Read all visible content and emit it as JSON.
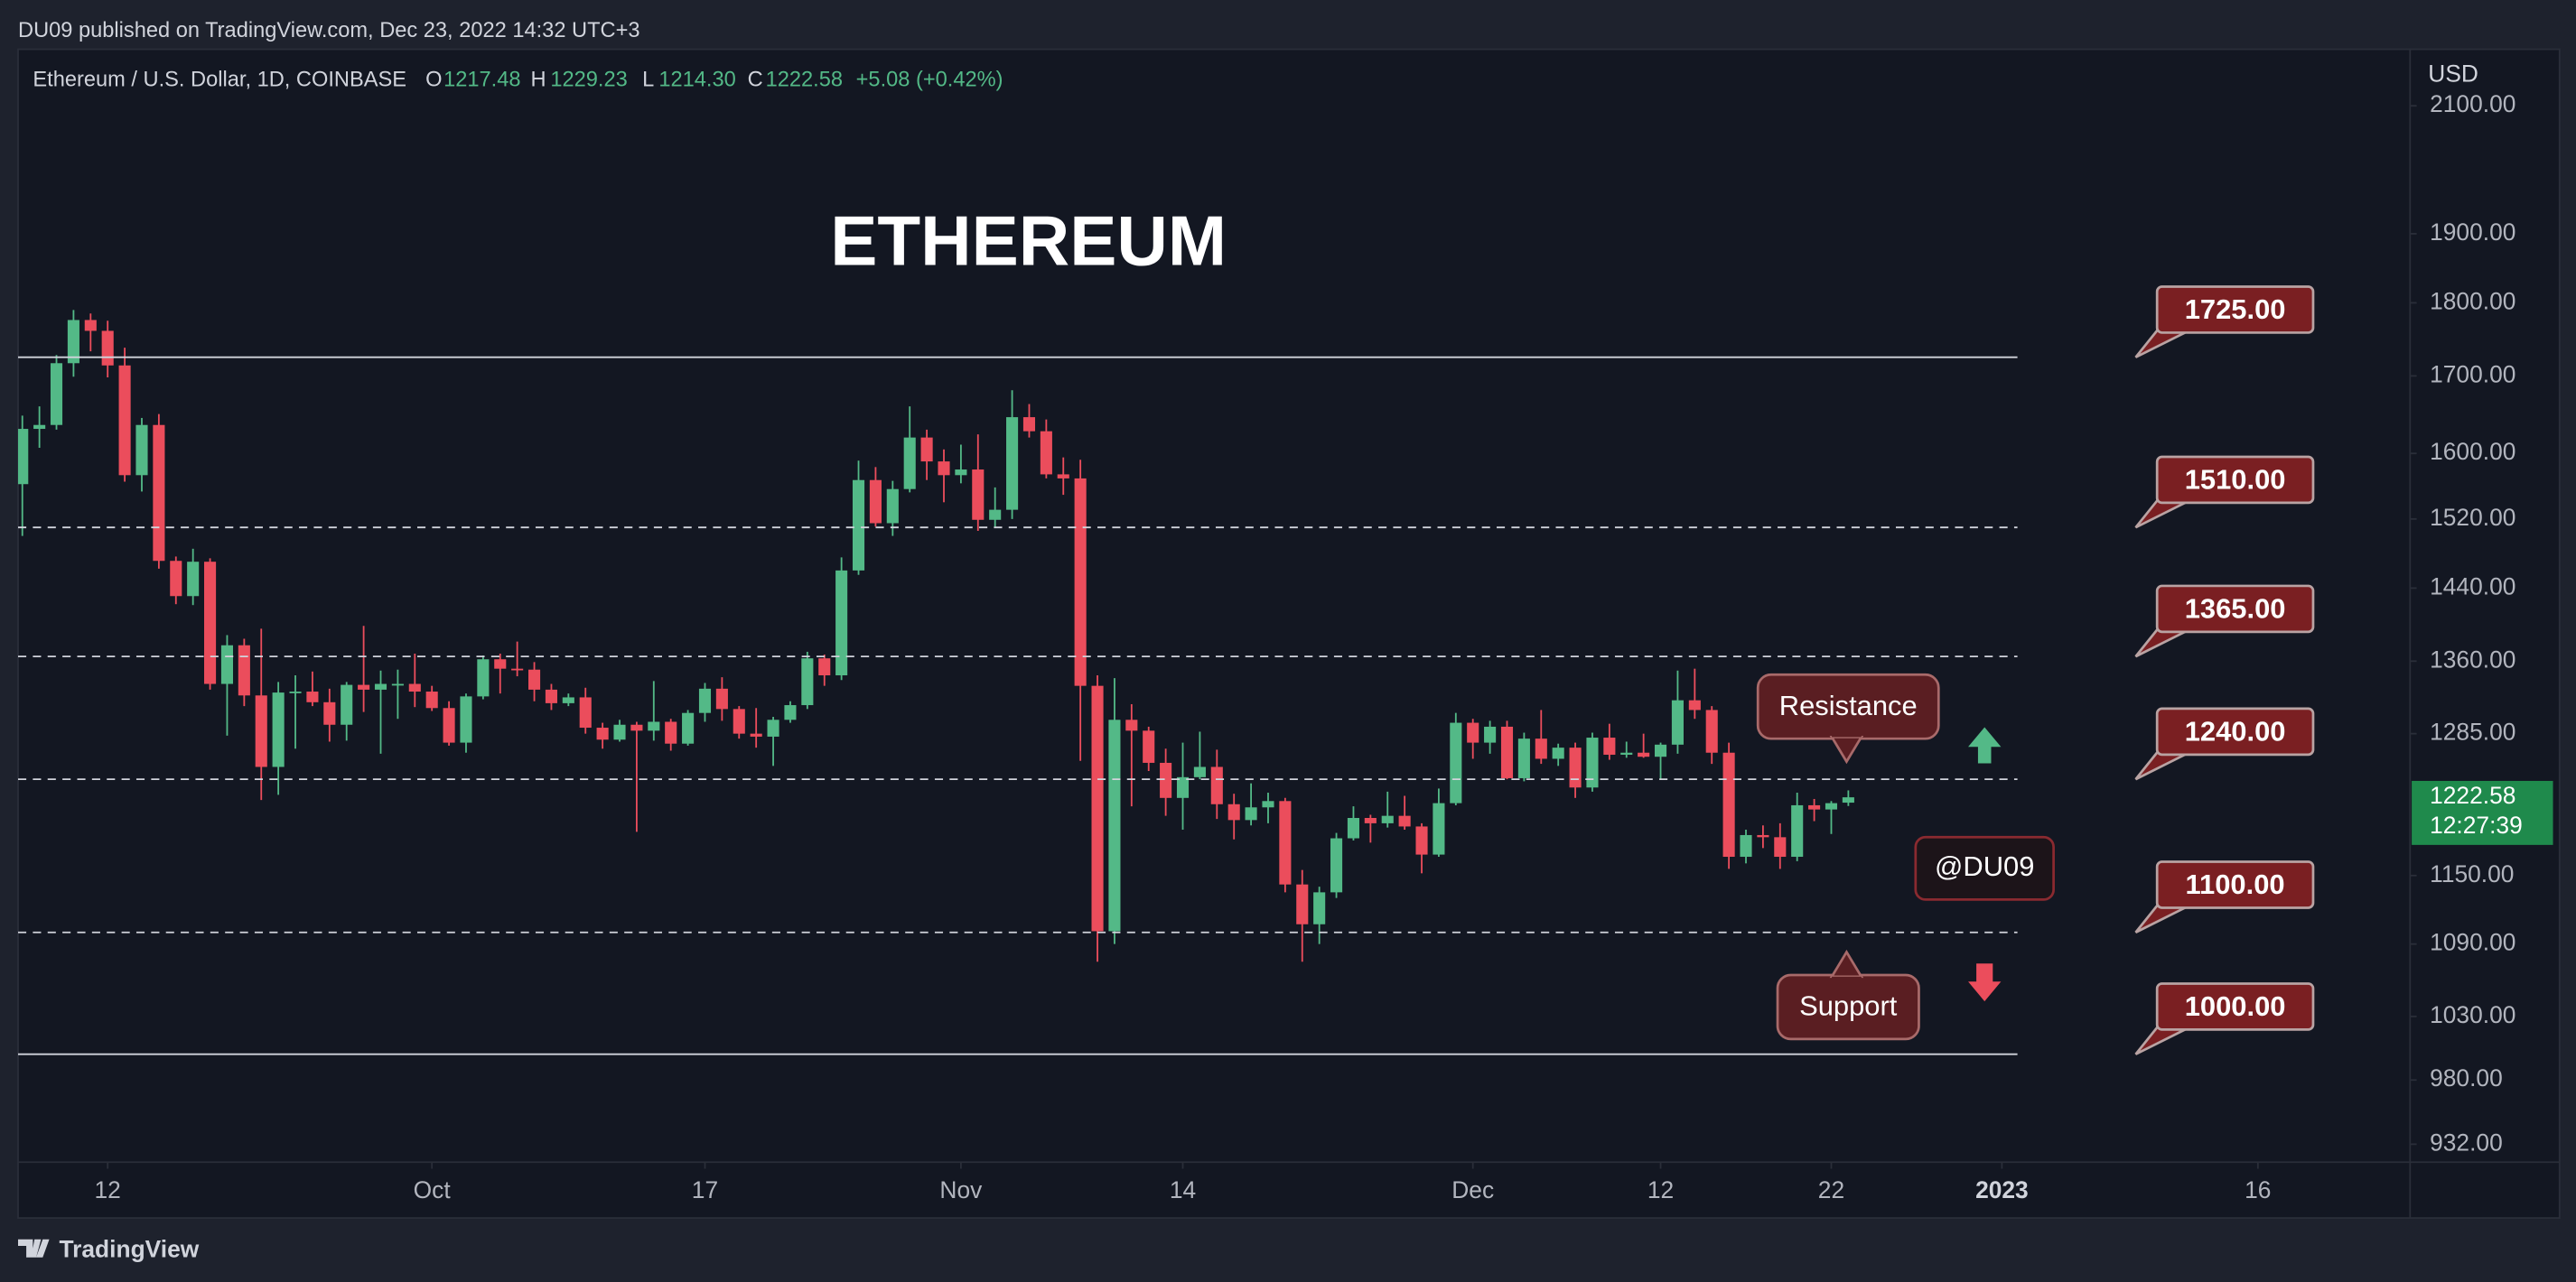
{
  "header": {
    "text": "DU09 published on TradingView.com, Dec 23, 2022 14:32 UTC+3"
  },
  "footer": {
    "brand": "TradingView"
  },
  "chart_data": {
    "type": "candlestick",
    "title": "ETHEREUM",
    "symbol": "Ethereum / U.S. Dollar, 1D, COINBASE",
    "legend": [
      {
        "key": "O",
        "value": "1217.48"
      },
      {
        "key": "H",
        "value": "1229.23"
      },
      {
        "key": "L",
        "value": "1214.30"
      },
      {
        "key": "C",
        "value": "1222.58"
      }
    ],
    "change": "+5.08 (+0.42%)",
    "ylabel": "USD",
    "last_price_label": "1222.58",
    "countdown": "12:27:39",
    "up_color": "#53b987",
    "down_color": "#eb4d5c",
    "log_y": true,
    "grid": false,
    "xlim": [
      "2022-09-06T18:00:00Z",
      "2023-01-24T22:00:00Z"
    ],
    "xticks": [
      {
        "value": "2022-09-12",
        "label": "12"
      },
      {
        "value": "2022-10-01",
        "label": "Oct"
      },
      {
        "value": "2022-10-17",
        "label": "17"
      },
      {
        "value": "2022-11-01",
        "label": "Nov"
      },
      {
        "value": "2022-11-14",
        "label": "14"
      },
      {
        "value": "2022-12-01",
        "label": "Dec"
      },
      {
        "value": "2022-12-12",
        "label": "12"
      },
      {
        "value": "2022-12-22",
        "label": "22"
      },
      {
        "value": "2023-01-01",
        "label": "2023"
      },
      {
        "value": "2023-01-16",
        "label": "16"
      }
    ],
    "ylim": [
      919,
      2195
    ],
    "yticks": [
      {
        "value": 2100,
        "label": "2100.00"
      },
      {
        "value": 1900,
        "label": "1900.00"
      },
      {
        "value": 1800,
        "label": "1800.00"
      },
      {
        "value": 1700,
        "label": "1700.00"
      },
      {
        "value": 1600,
        "label": "1600.00"
      },
      {
        "value": 1520,
        "label": "1520.00"
      },
      {
        "value": 1440,
        "label": "1440.00"
      },
      {
        "value": 1360,
        "label": "1360.00"
      },
      {
        "value": 1285,
        "label": "1285.00"
      },
      {
        "value": 1150,
        "label": "1150.00"
      },
      {
        "value": 1090,
        "label": "1090.00"
      },
      {
        "value": 1030,
        "label": "1030.00"
      },
      {
        "value": 980,
        "label": "980.00"
      },
      {
        "value": 932,
        "label": "932.00"
      }
    ],
    "levels": [
      {
        "value": 1725,
        "label": "1725.00",
        "style": "solid"
      },
      {
        "value": 1510,
        "label": "1510.00",
        "style": "dashed"
      },
      {
        "value": 1365,
        "label": "1365.00",
        "style": "dashed"
      },
      {
        "value": 1240,
        "label": "1240.00",
        "style": "dashed"
      },
      {
        "value": 1100,
        "label": "1100.00",
        "style": "dashed"
      },
      {
        "value": 1000,
        "label": "1000.00",
        "style": "solid"
      }
    ],
    "annotations": [
      "Resistance",
      "Support",
      "@DU09"
    ],
    "x": [
      "2022-09-07",
      "2022-09-08",
      "2022-09-09",
      "2022-09-10",
      "2022-09-11",
      "2022-09-12",
      "2022-09-13",
      "2022-09-14",
      "2022-09-15",
      "2022-09-16",
      "2022-09-17",
      "2022-09-18",
      "2022-09-19",
      "2022-09-20",
      "2022-09-21",
      "2022-09-22",
      "2022-09-23",
      "2022-09-24",
      "2022-09-25",
      "2022-09-26",
      "2022-09-27",
      "2022-09-28",
      "2022-09-29",
      "2022-09-30",
      "2022-10-01",
      "2022-10-02",
      "2022-10-03",
      "2022-10-04",
      "2022-10-05",
      "2022-10-06",
      "2022-10-07",
      "2022-10-08",
      "2022-10-09",
      "2022-10-10",
      "2022-10-11",
      "2022-10-12",
      "2022-10-13",
      "2022-10-14",
      "2022-10-15",
      "2022-10-16",
      "2022-10-17",
      "2022-10-18",
      "2022-10-19",
      "2022-10-20",
      "2022-10-21",
      "2022-10-22",
      "2022-10-23",
      "2022-10-24",
      "2022-10-25",
      "2022-10-26",
      "2022-10-27",
      "2022-10-28",
      "2022-10-29",
      "2022-10-30",
      "2022-10-31",
      "2022-11-01",
      "2022-11-02",
      "2022-11-03",
      "2022-11-04",
      "2022-11-05",
      "2022-11-06",
      "2022-11-07",
      "2022-11-08",
      "2022-11-09",
      "2022-11-10",
      "2022-11-11",
      "2022-11-12",
      "2022-11-13",
      "2022-11-14",
      "2022-11-15",
      "2022-11-16",
      "2022-11-17",
      "2022-11-18",
      "2022-11-19",
      "2022-11-20",
      "2022-11-21",
      "2022-11-22",
      "2022-11-23",
      "2022-11-24",
      "2022-11-25",
      "2022-11-26",
      "2022-11-27",
      "2022-11-28",
      "2022-11-29",
      "2022-11-30",
      "2022-12-01",
      "2022-12-02",
      "2022-12-03",
      "2022-12-04",
      "2022-12-05",
      "2022-12-06",
      "2022-12-07",
      "2022-12-08",
      "2022-12-09",
      "2022-12-10",
      "2022-12-11",
      "2022-12-12",
      "2022-12-13",
      "2022-12-14",
      "2022-12-15",
      "2022-12-16",
      "2022-12-17",
      "2022-12-18",
      "2022-12-19",
      "2022-12-20",
      "2022-12-21",
      "2022-12-22",
      "2022-12-23"
    ],
    "open": [
      1562,
      1631,
      1636,
      1717,
      1776,
      1761,
      1714,
      1573,
      1636,
      1471,
      1431,
      1470,
      1336,
      1377,
      1324,
      1252,
      1327,
      1328,
      1317,
      1294,
      1335,
      1330,
      1336,
      1336,
      1328,
      1311,
      1276,
      1323,
      1362,
      1352,
      1351,
      1330,
      1316,
      1322,
      1291,
      1279,
      1294,
      1288,
      1297,
      1275,
      1306,
      1331,
      1310,
      1285,
      1282,
      1299,
      1314,
      1363,
      1345,
      1460,
      1567,
      1515,
      1556,
      1620,
      1590,
      1573,
      1580,
      1519,
      1531,
      1646,
      1628,
      1574,
      1569,
      1334,
      1101,
      1299,
      1288,
      1256,
      1222,
      1242,
      1252,
      1216,
      1201,
      1213,
      1219,
      1142,
      1107,
      1135,
      1184,
      1203,
      1198,
      1205,
      1195,
      1169,
      1217,
      1296,
      1276,
      1292,
      1241,
      1280,
      1260,
      1271,
      1232,
      1281,
      1264,
      1266,
      1262,
      1274,
      1319,
      1309,
      1266,
      1167,
      1187,
      1185,
      1167,
      1215,
      1211,
      1217.48
    ],
    "high": [
      1648,
      1660,
      1728,
      1790,
      1785,
      1775,
      1738,
      1645,
      1650,
      1476,
      1485,
      1474,
      1388,
      1384,
      1395,
      1338,
      1345,
      1349,
      1331,
      1338,
      1398,
      1350,
      1351,
      1368,
      1334,
      1318,
      1326,
      1366,
      1368,
      1381,
      1359,
      1336,
      1326,
      1332,
      1296,
      1299,
      1297,
      1339,
      1300,
      1309,
      1337,
      1343,
      1313,
      1311,
      1302,
      1318,
      1370,
      1367,
      1475,
      1591,
      1583,
      1566,
      1660,
      1630,
      1605,
      1611,
      1624,
      1558,
      1681,
      1663,
      1643,
      1595,
      1592,
      1345,
      1342,
      1315,
      1292,
      1270,
      1276,
      1287,
      1269,
      1226,
      1236,
      1227,
      1222,
      1155,
      1140,
      1189,
      1214,
      1206,
      1228,
      1224,
      1198,
      1231,
      1306,
      1300,
      1298,
      1298,
      1286,
      1309,
      1275,
      1276,
      1286,
      1295,
      1277,
      1285,
      1276,
      1350,
      1352,
      1313,
      1276,
      1192,
      1196,
      1198,
      1227,
      1221,
      1219,
      1229.23
    ],
    "low": [
      1500,
      1607,
      1630,
      1699,
      1733,
      1698,
      1565,
      1553,
      1462,
      1422,
      1421,
      1330,
      1283,
      1313,
      1220,
      1225,
      1270,
      1313,
      1277,
      1278,
      1307,
      1265,
      1300,
      1312,
      1308,
      1273,
      1266,
      1320,
      1326,
      1344,
      1318,
      1309,
      1313,
      1285,
      1270,
      1277,
      1190,
      1278,
      1268,
      1273,
      1297,
      1298,
      1280,
      1271,
      1253,
      1296,
      1310,
      1334,
      1340,
      1455,
      1511,
      1500,
      1552,
      1567,
      1540,
      1563,
      1506,
      1510,
      1520,
      1620,
      1569,
      1549,
      1258,
      1075,
      1090,
      1214,
      1248,
      1205,
      1192,
      1240,
      1202,
      1183,
      1196,
      1198,
      1135,
      1075,
      1090,
      1130,
      1182,
      1180,
      1194,
      1192,
      1152,
      1167,
      1215,
      1260,
      1265,
      1240,
      1238,
      1255,
      1253,
      1222,
      1228,
      1259,
      1261,
      1261,
      1240,
      1265,
      1300,
      1255,
      1156,
      1161,
      1175,
      1156,
      1163,
      1200,
      1188,
      1214.3
    ],
    "close": [
      1631,
      1636,
      1717,
      1776,
      1761,
      1714,
      1573,
      1636,
      1471,
      1431,
      1470,
      1336,
      1377,
      1324,
      1252,
      1327,
      1328,
      1317,
      1294,
      1335,
      1330,
      1336,
      1336,
      1328,
      1311,
      1276,
      1323,
      1362,
      1352,
      1351,
      1330,
      1316,
      1322,
      1291,
      1279,
      1294,
      1288,
      1297,
      1275,
      1306,
      1331,
      1310,
      1285,
      1282,
      1299,
      1314,
      1363,
      1345,
      1460,
      1567,
      1515,
      1556,
      1620,
      1590,
      1573,
      1580,
      1519,
      1531,
      1646,
      1628,
      1574,
      1569,
      1334,
      1101,
      1299,
      1288,
      1256,
      1222,
      1242,
      1252,
      1216,
      1201,
      1213,
      1219,
      1142,
      1107,
      1135,
      1184,
      1203,
      1198,
      1205,
      1195,
      1169,
      1217,
      1296,
      1276,
      1292,
      1241,
      1280,
      1260,
      1271,
      1232,
      1281,
      1264,
      1266,
      1262,
      1274,
      1319,
      1309,
      1266,
      1167,
      1187,
      1185,
      1167,
      1215,
      1211,
      1217,
      1222.58
    ]
  }
}
